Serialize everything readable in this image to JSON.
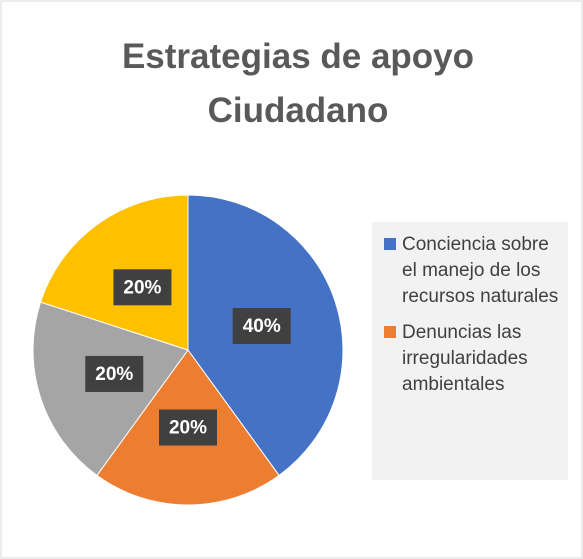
{
  "chart_data": {
    "type": "pie",
    "title": "Estrategias de apoyo Ciudadano",
    "categories": [
      "Conciencia sobre el manejo de los recursos naturales",
      "Denuncias las irregularidades ambientales",
      null,
      null
    ],
    "values": [
      40,
      20,
      20,
      20
    ],
    "value_labels": [
      "40%",
      "20%",
      "20%",
      "20%"
    ],
    "colors": [
      "#4472c4",
      "#ed7d31",
      "#a5a5a5",
      "#ffc000"
    ],
    "legend": "right"
  }
}
